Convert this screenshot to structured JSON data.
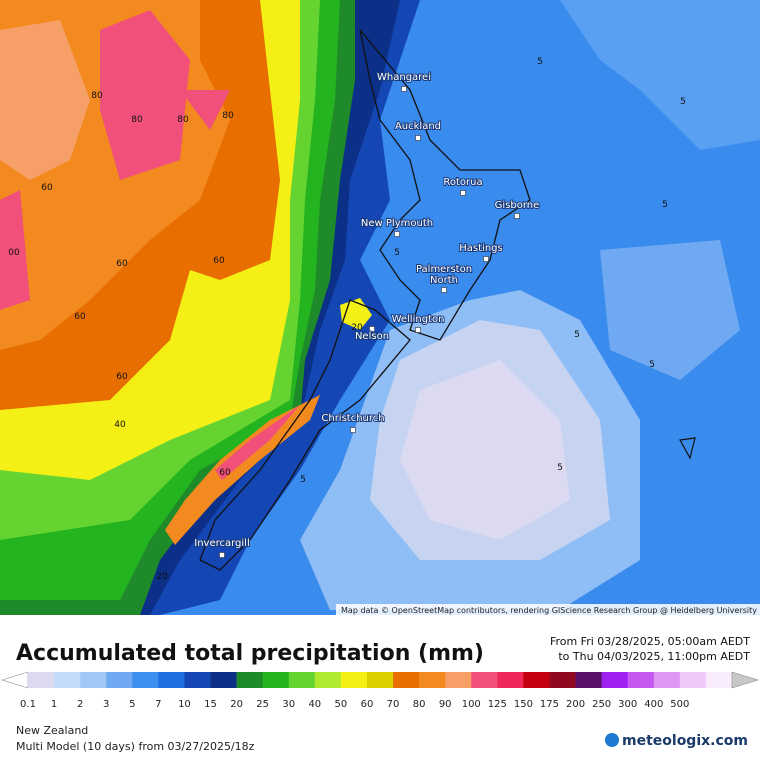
{
  "map": {
    "cities": [
      "Whangarei",
      "Auckland",
      "Rotorua",
      "Gisborne",
      "New Plymouth",
      "Hastings",
      "Palmerston North",
      "Wellington",
      "Nelson",
      "Christchurch",
      "Invercargill"
    ],
    "contour_labels": [
      "80",
      "80",
      "80",
      "80",
      "60",
      "00",
      "60",
      "60",
      "60",
      "60",
      "40",
      "60",
      "20",
      "20",
      "5",
      "5",
      "5",
      "5",
      "5",
      "5",
      "5",
      "5"
    ],
    "attribution": "Map data © OpenStreetMap contributors, rendering GIScience Research Group @ Heidelberg University"
  },
  "legend": {
    "title": "Accumulated total precipitation (mm)",
    "period_from": "From Fri 03/28/2025, 05:00am AEDT",
    "period_to": "to Thu 04/03/2025, 11:00pm AEDT",
    "ticks": [
      "0.1",
      "1",
      "2",
      "3",
      "5",
      "7",
      "10",
      "15",
      "20",
      "25",
      "30",
      "40",
      "50",
      "60",
      "70",
      "80",
      "90",
      "100",
      "125",
      "150",
      "175",
      "200",
      "250",
      "300",
      "400",
      "500"
    ],
    "colors": [
      "#dcdaf0",
      "#c2dcfa",
      "#a2c8f6",
      "#6ea9f2",
      "#3f8ff0",
      "#1f6fe0",
      "#1446b4",
      "#0c2f88",
      "#1f8a2a",
      "#23b41f",
      "#66d430",
      "#b0ea30",
      "#f4f016",
      "#dcd000",
      "#e86e00",
      "#f38a20",
      "#f6a068",
      "#f0507a",
      "#ee2858",
      "#c40010",
      "#8e0820",
      "#5a1068",
      "#a020f0",
      "#c658f2",
      "#dc98f2",
      "#efc8fa",
      "#f8ecfc"
    ],
    "below_color": "#ffffff",
    "above_color": "#c8c8c8"
  },
  "footer": {
    "region": "New Zealand",
    "model": "Multi Model (10 days) from  03/27/2025/18z",
    "brand": "meteologix.com"
  }
}
